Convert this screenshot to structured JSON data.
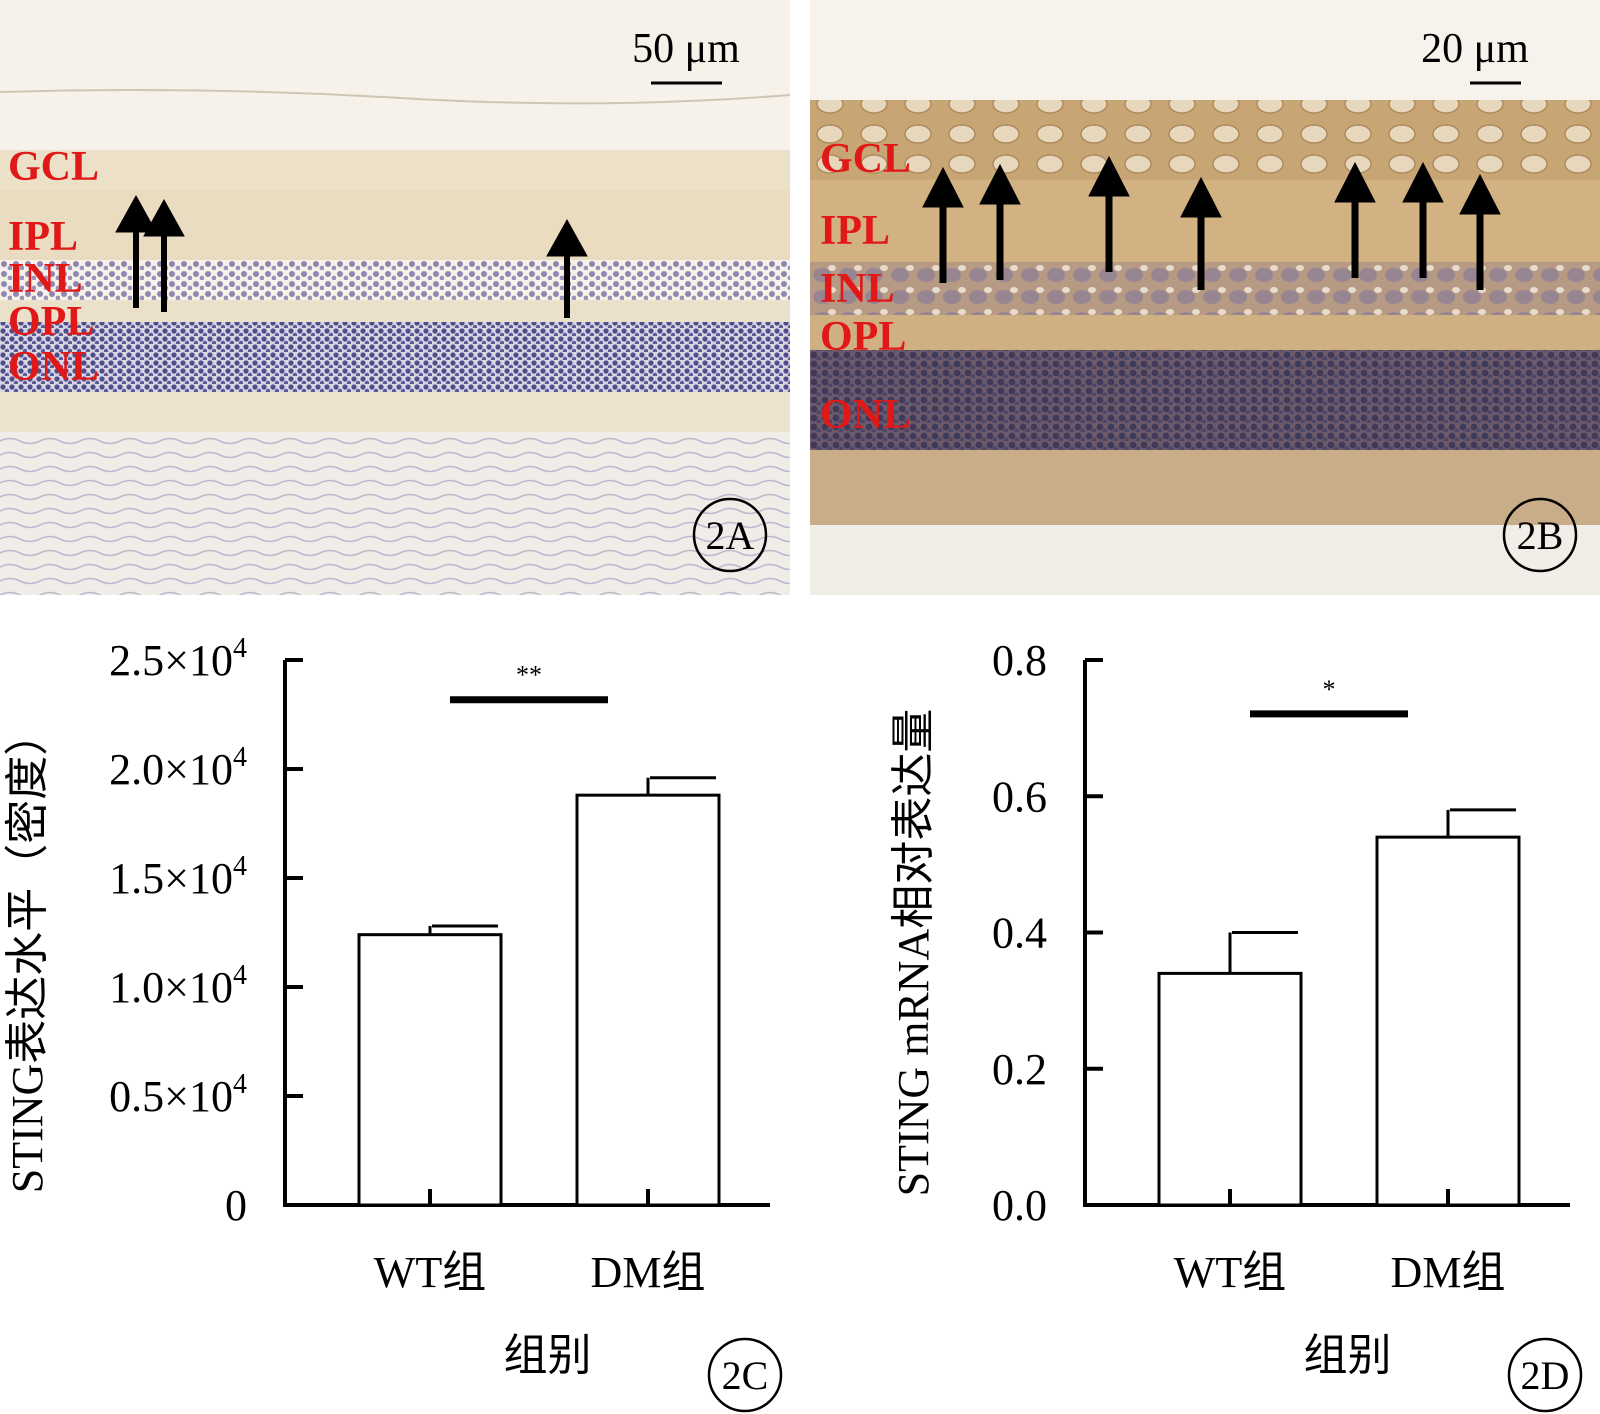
{
  "panels": {
    "A": {
      "letter": "2A",
      "scale_bar": "50 μm",
      "layers": [
        "GCL",
        "IPL",
        "INL",
        "OPL",
        "ONL"
      ]
    },
    "B": {
      "letter": "2B",
      "scale_bar": "20 μm",
      "layers": [
        "GCL",
        "IPL",
        "INL",
        "OPL",
        "ONL"
      ]
    }
  },
  "colors": {
    "layer_label": "#e01818",
    "panelA_bg": "#f1ead9",
    "panelB_bg": "#d9bb8c",
    "nuclei": "#4d4e8c",
    "arrow": "#000000"
  },
  "chart_data": [
    {
      "type": "bar",
      "panel_letter": "2C",
      "categories": [
        "WT组",
        "DM组"
      ],
      "values": [
        12400,
        18800
      ],
      "errors": [
        400,
        800
      ],
      "ylabel": "STING表达水平（密度）",
      "xlabel": "组别",
      "ylim": [
        0,
        25000
      ],
      "yticks": [
        0,
        5000,
        10000,
        15000,
        20000,
        25000
      ],
      "ytick_labels": [
        "0",
        "0.5×10",
        "1.0×10",
        "1.5×10",
        "2.0×10",
        "2.5×10"
      ],
      "ytick_exponent": "4",
      "significance": "**",
      "grid": false
    },
    {
      "type": "bar",
      "panel_letter": "2D",
      "categories": [
        "WT组",
        "DM组"
      ],
      "values": [
        0.34,
        0.54
      ],
      "errors": [
        0.06,
        0.04
      ],
      "ylabel": "STING mRNA相对表达量",
      "xlabel": "组别",
      "ylim": [
        0,
        0.8
      ],
      "yticks": [
        0,
        0.2,
        0.4,
        0.6,
        0.8
      ],
      "ytick_labels": [
        "0.0",
        "0.2",
        "0.4",
        "0.6",
        "0.8"
      ],
      "ytick_exponent": "",
      "significance": "*",
      "grid": false
    }
  ]
}
